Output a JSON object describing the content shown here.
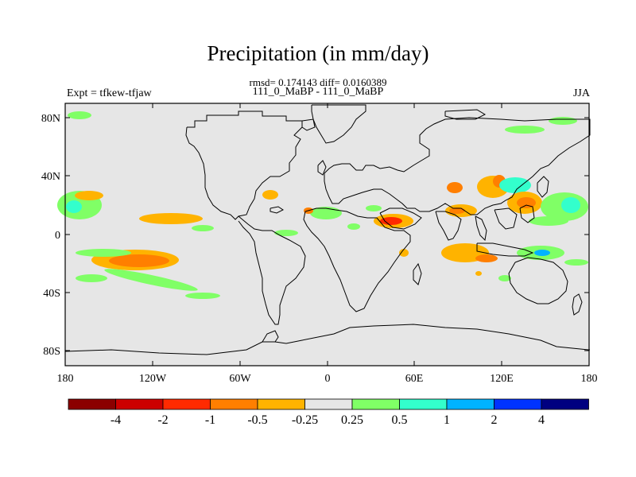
{
  "header": {
    "title": "Precipitation (in mm/day)",
    "stats": "rmsd= 0.174143  diff= 0.0160389",
    "subtitle": "111_0_MaBP - 111_0_MaBP",
    "expt": "Expt = tfkew-tfjaw",
    "season": "JJA"
  },
  "axes": {
    "y_ticks": [
      "80N",
      "40N",
      "0",
      "40S",
      "80S"
    ],
    "x_ticks": [
      "180",
      "120W",
      "60W",
      "0",
      "60E",
      "120E",
      "180"
    ]
  },
  "colorbar": {
    "labels": [
      "-4",
      "-2",
      "-1",
      "-0.5",
      "-0.25",
      "0.25",
      "0.5",
      "1",
      "2",
      "4"
    ],
    "colors": [
      "#8b0000",
      "#cc0000",
      "#ff2a00",
      "#ff7f00",
      "#ffb300",
      "#e6e6e6",
      "#80ff66",
      "#33ffcc",
      "#00b3ff",
      "#0033ff",
      "#000080"
    ]
  },
  "colors": {
    "background_field": "#e6e6e6",
    "coastline": "#000000"
  }
}
